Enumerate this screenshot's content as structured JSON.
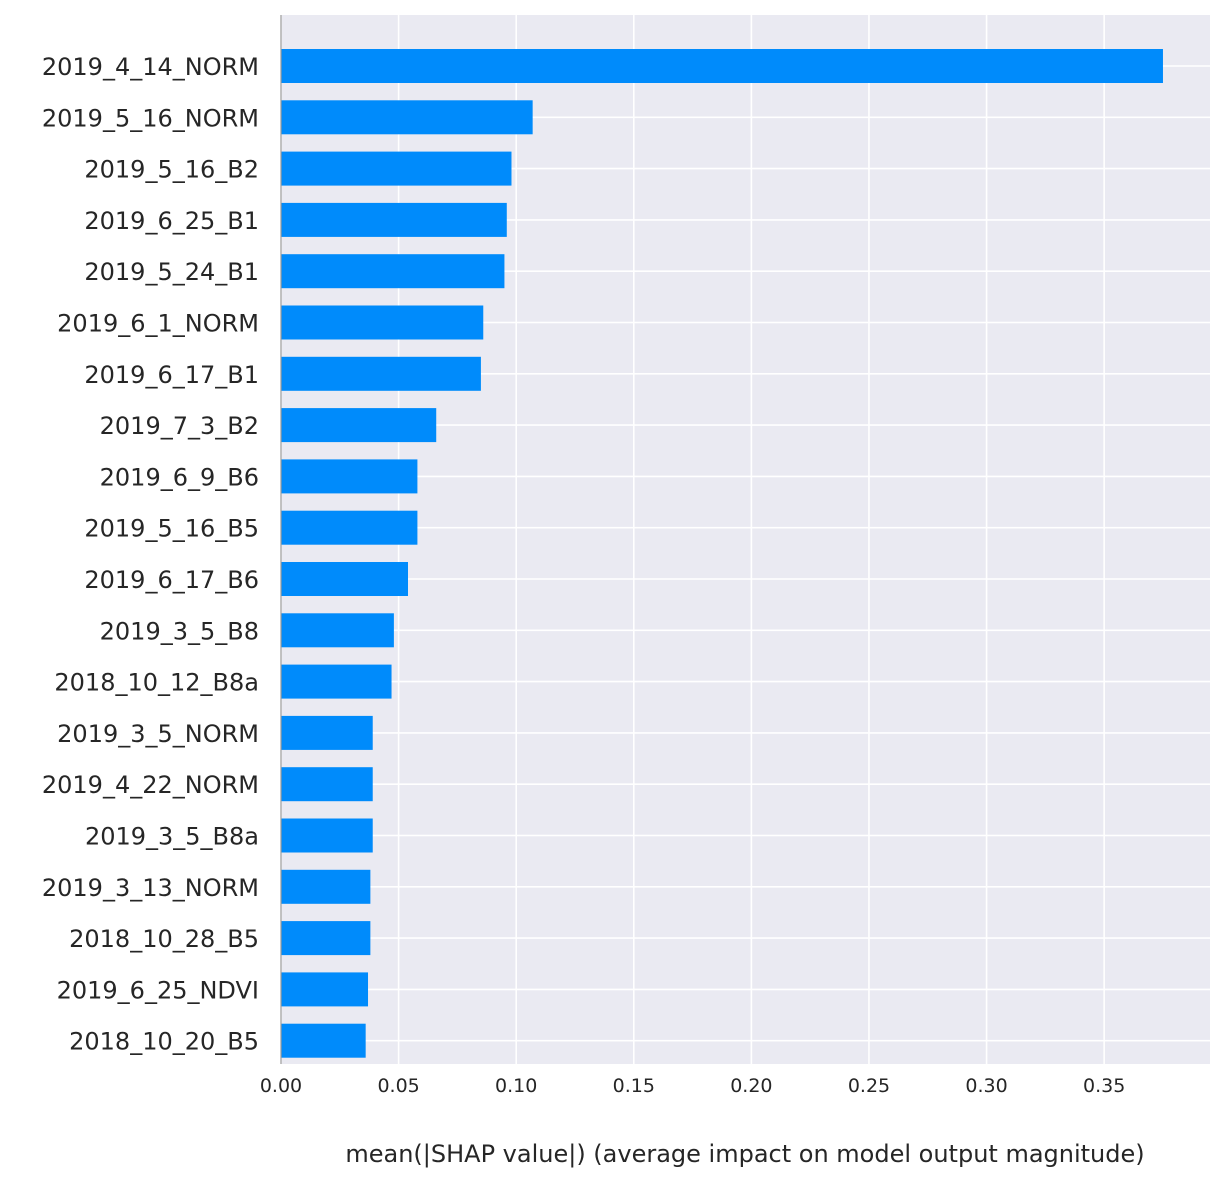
{
  "chart_data": {
    "type": "bar",
    "orientation": "horizontal",
    "categories": [
      "2019_4_14_NORM",
      "2019_5_16_NORM",
      "2019_5_16_B2",
      "2019_6_25_B1",
      "2019_5_24_B1",
      "2019_6_1_NORM",
      "2019_6_17_B1",
      "2019_7_3_B2",
      "2019_6_9_B6",
      "2019_5_16_B5",
      "2019_6_17_B6",
      "2019_3_5_B8",
      "2018_10_12_B8a",
      "2019_3_5_NORM",
      "2019_4_22_NORM",
      "2019_3_5_B8a",
      "2019_3_13_NORM",
      "2018_10_28_B5",
      "2019_6_25_NDVI",
      "2018_10_20_B5"
    ],
    "values": [
      0.375,
      0.107,
      0.098,
      0.096,
      0.095,
      0.086,
      0.085,
      0.066,
      0.058,
      0.058,
      0.054,
      0.048,
      0.047,
      0.039,
      0.039,
      0.039,
      0.038,
      0.038,
      0.037,
      0.036
    ],
    "xlabel": "mean(|SHAP value|) (average impact on model output magnitude)",
    "xticks": [
      "0.00",
      "0.05",
      "0.10",
      "0.15",
      "0.20",
      "0.25",
      "0.30",
      "0.35"
    ],
    "tick_values": [
      0,
      0.05,
      0.1,
      0.15,
      0.2,
      0.25,
      0.3,
      0.35
    ],
    "xlim": [
      0,
      0.395
    ],
    "grid": true,
    "colors": {
      "bar": "#008bfb",
      "plot_background": "#eaeaf2",
      "grid": "#ffffff",
      "axis_line": "#9a9a9a",
      "text": "#262626"
    }
  }
}
